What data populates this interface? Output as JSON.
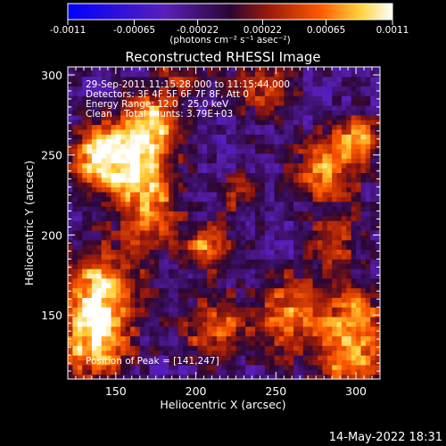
{
  "chart_data": {
    "type": "heatmap",
    "title": "Reconstructed RHESSI Image",
    "xlabel": "Heliocentric X (arcsec)",
    "ylabel": "Heliocentric Y (arcsec)",
    "xlim": [
      120,
      315
    ],
    "ylim": [
      110,
      305
    ],
    "x_ticks": [
      "150",
      "200",
      "250",
      "300"
    ],
    "y_ticks": [
      "150",
      "200",
      "250",
      "300"
    ],
    "colorbar": {
      "tick_labels": [
        "-0.0011",
        "-0.00065",
        "-0.00022",
        "0.00022",
        "0.00065",
        "0.0011"
      ],
      "range": [
        -0.0011,
        0.0011
      ],
      "label": "(photons cm⁻² s⁻¹ asec⁻²)"
    },
    "annotations": [
      "29-Sep-2011 11:15:28.000 to 11:15:44.000",
      "Detectors: 3F 4F 5F 6F 7F 8F, Att 0",
      "Energy Range: 12.0 - 25.0 keV",
      "Clean    Total counts: 3.79E+03"
    ],
    "peak_label": "Position of Peak = [141,247]",
    "peak": [
      141,
      247
    ],
    "timestamp": "14-May-2022 18:31",
    "sources": [
      {
        "x": 141,
        "y": 247,
        "r": 14,
        "amp": 1.0
      },
      {
        "x": 163,
        "y": 245,
        "r": 15,
        "amp": 0.85
      },
      {
        "x": 172,
        "y": 272,
        "r": 12,
        "amp": 0.7
      },
      {
        "x": 170,
        "y": 212,
        "r": 14,
        "amp": 0.65
      },
      {
        "x": 138,
        "y": 165,
        "r": 18,
        "amp": 0.85
      },
      {
        "x": 135,
        "y": 130,
        "r": 16,
        "amp": 0.8
      },
      {
        "x": 205,
        "y": 190,
        "r": 10,
        "amp": 0.7
      },
      {
        "x": 210,
        "y": 140,
        "r": 14,
        "amp": 0.6
      },
      {
        "x": 260,
        "y": 150,
        "r": 18,
        "amp": 0.65
      },
      {
        "x": 240,
        "y": 290,
        "r": 14,
        "amp": 0.45
      },
      {
        "x": 280,
        "y": 240,
        "r": 15,
        "amp": 0.7
      },
      {
        "x": 300,
        "y": 260,
        "r": 10,
        "amp": 0.6
      },
      {
        "x": 285,
        "y": 195,
        "r": 12,
        "amp": 0.45
      },
      {
        "x": 300,
        "y": 150,
        "r": 12,
        "amp": 0.55
      },
      {
        "x": 295,
        "y": 120,
        "r": 15,
        "amp": 0.75
      },
      {
        "x": 190,
        "y": 300,
        "r": 12,
        "amp": 0.4
      },
      {
        "x": 225,
        "y": 225,
        "r": 10,
        "amp": 0.4
      }
    ],
    "grid": false,
    "legend": "none"
  }
}
